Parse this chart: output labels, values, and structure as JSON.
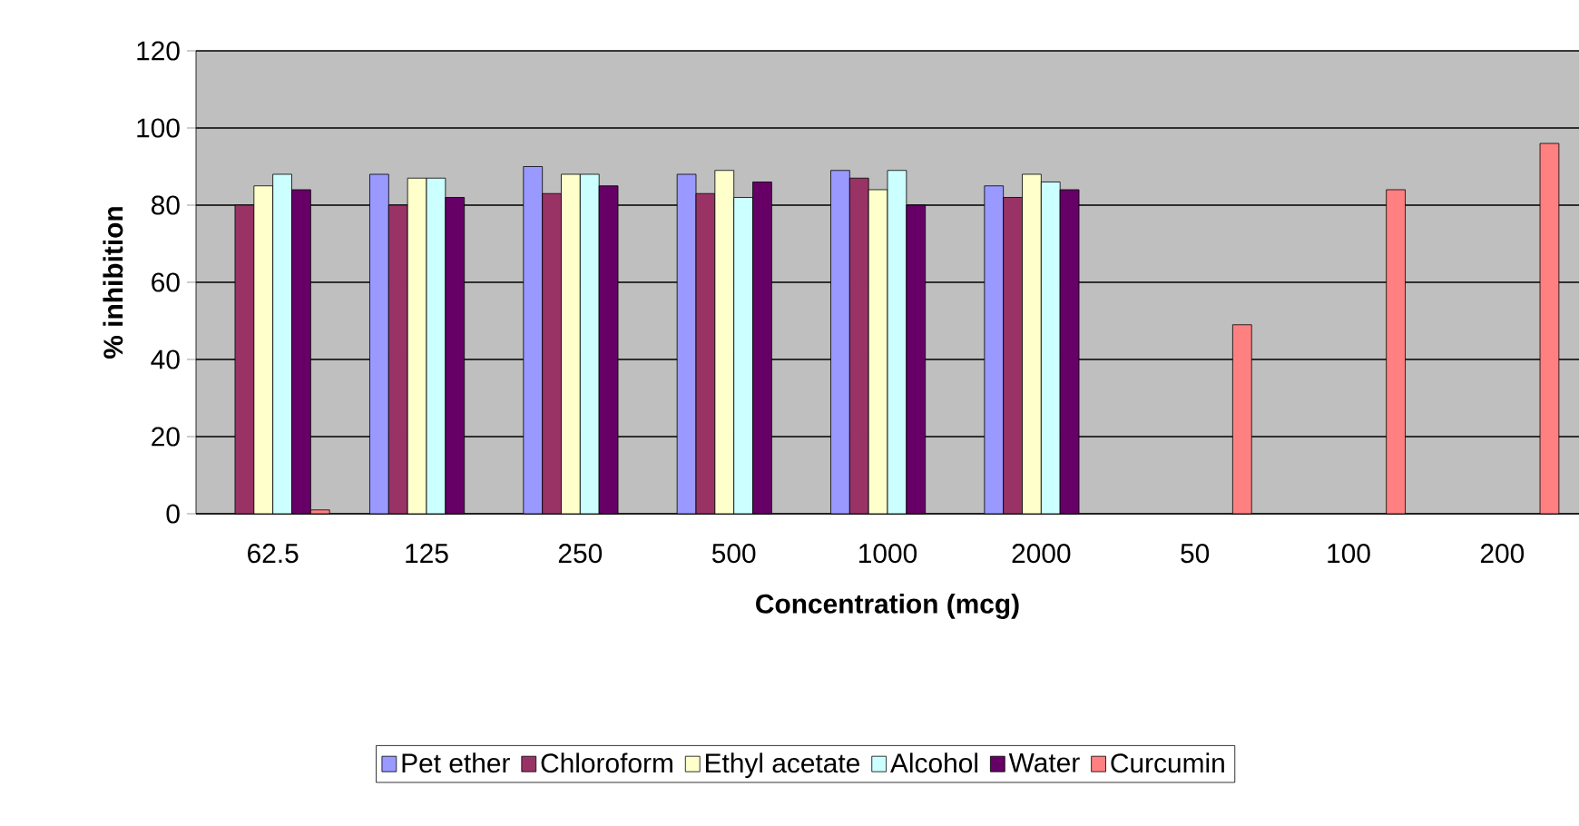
{
  "chart_data": {
    "type": "bar",
    "xlabel": "Concentration (mcg)",
    "ylabel": "% inhibition",
    "categories": [
      "62.5",
      "125",
      "250",
      "500",
      "1000",
      "2000",
      "50",
      "100",
      "200"
    ],
    "series": [
      {
        "name": "Pet ether",
        "color": "#9999ff",
        "values": [
          null,
          88,
          90,
          88,
          89,
          85,
          null,
          null,
          null
        ]
      },
      {
        "name": "Chloroform",
        "color": "#993366",
        "values": [
          80,
          80,
          83,
          83,
          87,
          82,
          null,
          null,
          null
        ]
      },
      {
        "name": "Ethyl acetate",
        "color": "#ffffcc",
        "values": [
          85,
          87,
          88,
          89,
          84,
          88,
          null,
          null,
          null
        ]
      },
      {
        "name": "Alcohol",
        "color": "#ccffff",
        "values": [
          88,
          87,
          88,
          82,
          89,
          86,
          null,
          null,
          null
        ]
      },
      {
        "name": "Water",
        "color": "#660066",
        "values": [
          84,
          82,
          85,
          86,
          80,
          84,
          null,
          null,
          null
        ]
      },
      {
        "name": "Curcumin",
        "color": "#ff8080",
        "values": [
          1,
          null,
          null,
          null,
          null,
          null,
          49,
          84,
          96
        ]
      }
    ],
    "ylim": [
      0,
      120
    ],
    "yticks": [
      0,
      20,
      40,
      60,
      80,
      100,
      120
    ],
    "grid": "y",
    "legend": "bottom"
  }
}
